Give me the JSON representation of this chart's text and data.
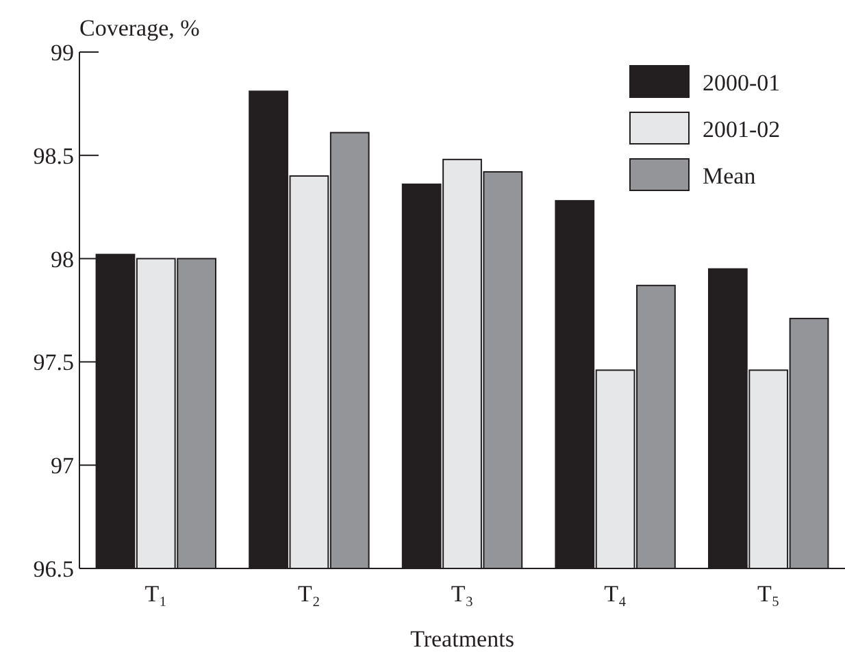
{
  "chart_data": {
    "type": "bar",
    "ylabel": "Coverage, %",
    "xlabel": "Treatments",
    "categories": [
      "T₁",
      "T₂",
      "T₃",
      "T₄",
      "T₅"
    ],
    "series": [
      {
        "name": "2000-01",
        "color": "#231f20",
        "values": [
          98.02,
          98.81,
          98.36,
          98.28,
          97.95
        ]
      },
      {
        "name": "2001-02",
        "color": "#e6e7e8",
        "values": [
          98.0,
          98.4,
          98.48,
          97.46,
          97.46
        ]
      },
      {
        "name": "Mean",
        "color": "#939598",
        "values": [
          98.0,
          98.61,
          98.42,
          97.87,
          97.71
        ]
      }
    ],
    "ylim": [
      96.5,
      99
    ],
    "yticks": [
      {
        "value": 96.5,
        "label": "96.5"
      },
      {
        "value": 97,
        "label": "97"
      },
      {
        "value": 97.5,
        "label": "97.5"
      },
      {
        "value": 98,
        "label": "98"
      },
      {
        "value": 98.5,
        "label": "98.5"
      },
      {
        "value": 99,
        "label": "99"
      }
    ],
    "legend": "top right",
    "grid": false
  }
}
